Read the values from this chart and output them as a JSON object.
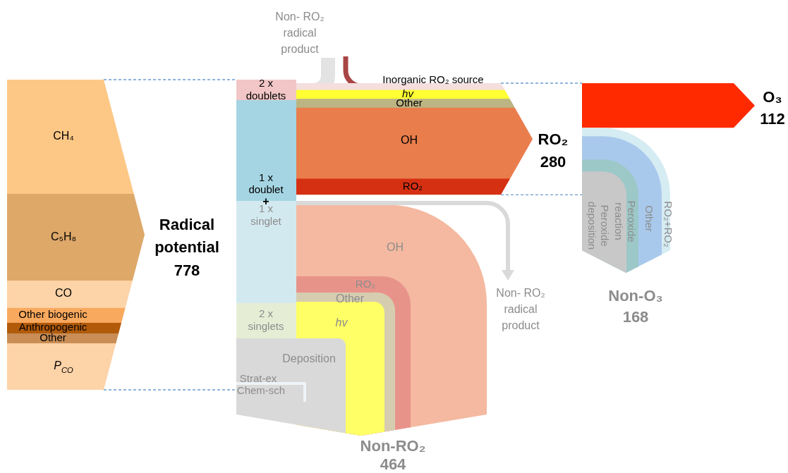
{
  "chart_data": {
    "type": "other",
    "categories": [
      "Radical potential",
      "RO₂",
      "O₃",
      "Non-O₃",
      "Non-RO₂"
    ],
    "values": [
      778,
      280,
      112,
      168,
      464
    ],
    "data_labels": true,
    "annotations": [
      "Non- RO₂ radical product",
      "2 x doublets",
      "1 x doublet",
      "1 x singlet",
      "2 x singlets",
      "Deposition",
      "Strat-ex",
      "Chem-sch",
      "CH₄",
      "C₅H₈",
      "CO",
      "Other biogenic",
      "Anthropogenic",
      "Other",
      "P$_{CO}$",
      "Inorganic RO₂ source",
      "hv",
      "Other",
      "OH",
      "RO₂",
      "OH",
      "RO₂",
      "Other",
      "hv",
      "Non- RO₂ radical product",
      "RO₂+RO₂",
      "Other",
      "Peroxide reaction",
      "Peroxide deposition",
      "+"
    ]
  }
}
